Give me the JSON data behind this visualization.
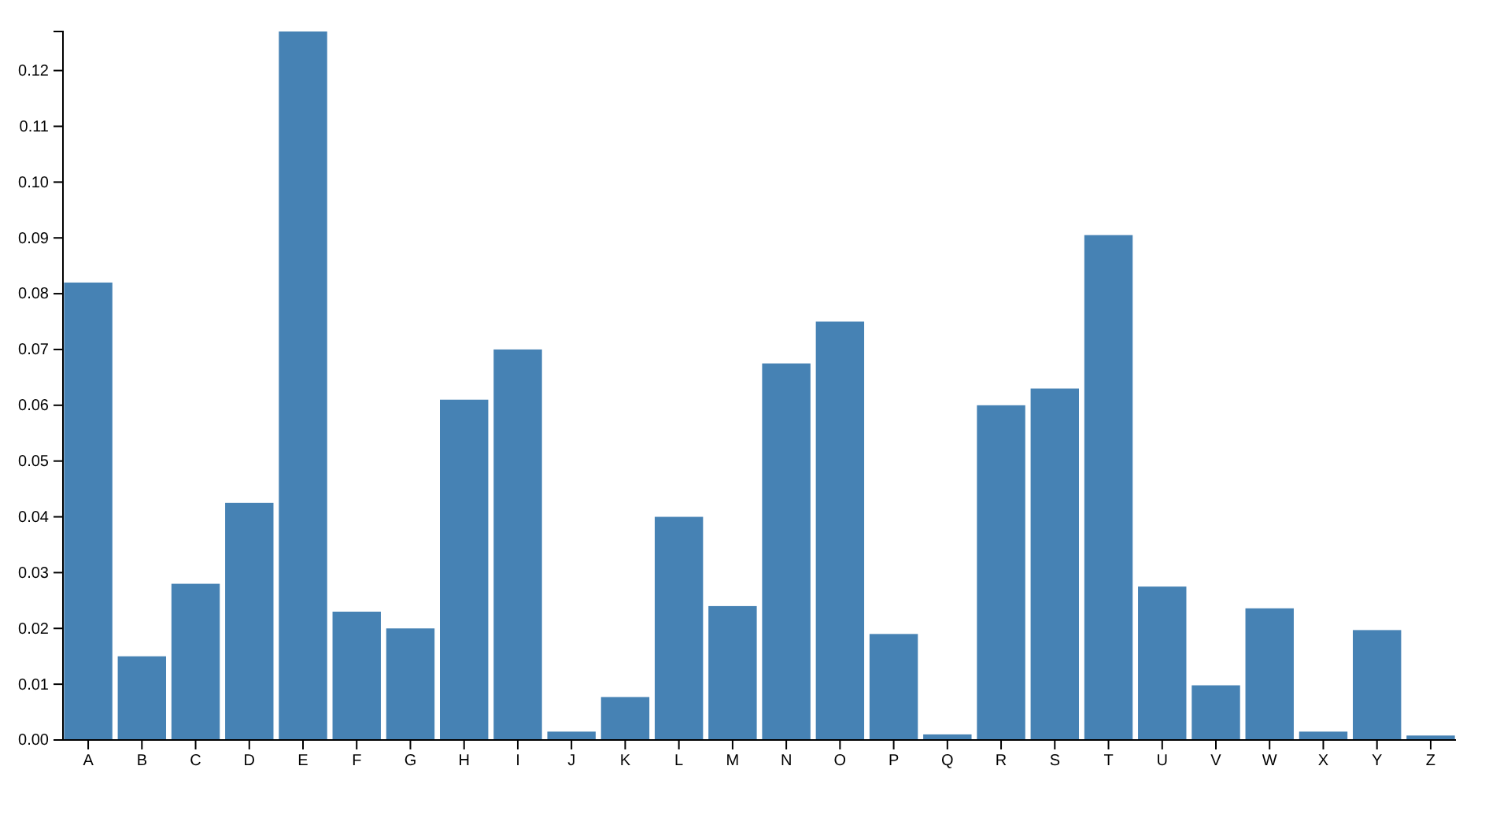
{
  "chart_data": {
    "type": "bar",
    "categories": [
      "A",
      "B",
      "C",
      "D",
      "E",
      "F",
      "G",
      "H",
      "I",
      "J",
      "K",
      "L",
      "M",
      "N",
      "O",
      "P",
      "Q",
      "R",
      "S",
      "T",
      "U",
      "V",
      "W",
      "X",
      "Y",
      "Z"
    ],
    "values": [
      0.082,
      0.015,
      0.028,
      0.0425,
      0.127,
      0.023,
      0.02,
      0.061,
      0.07,
      0.0015,
      0.0077,
      0.04,
      0.024,
      0.0675,
      0.075,
      0.019,
      0.001,
      0.06,
      0.063,
      0.0905,
      0.0275,
      0.0098,
      0.0236,
      0.0015,
      0.0197,
      0.0008
    ],
    "color": "#4682b4",
    "ylim": [
      0,
      0.127
    ],
    "yticks": [
      {
        "value": 0,
        "label": "0.00"
      },
      {
        "value": 0.01,
        "label": "0.01"
      },
      {
        "value": 0.02,
        "label": "0.02"
      },
      {
        "value": 0.03,
        "label": "0.03"
      },
      {
        "value": 0.04,
        "label": "0.04"
      },
      {
        "value": 0.05,
        "label": "0.05"
      },
      {
        "value": 0.06,
        "label": "0.06"
      },
      {
        "value": 0.07,
        "label": "0.07"
      },
      {
        "value": 0.08,
        "label": "0.08"
      },
      {
        "value": 0.09,
        "label": "0.09"
      },
      {
        "value": 0.1,
        "label": "0.10"
      },
      {
        "value": 0.11,
        "label": "0.11"
      },
      {
        "value": 0.12,
        "label": "0.12"
      }
    ]
  }
}
